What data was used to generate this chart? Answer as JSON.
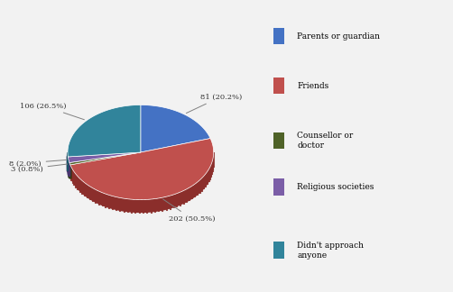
{
  "labels": [
    "Parents or guardian",
    "Friends",
    "Counsellor or\ndoctor",
    "Religious societies",
    "Didn't approach\nanyone"
  ],
  "values": [
    81,
    202,
    3,
    8,
    106
  ],
  "percentages": [
    "20.2%",
    "50.5%",
    "0.8%",
    "2.0%",
    "26.5%"
  ],
  "counts": [
    81,
    202,
    3,
    8,
    106
  ],
  "colors": [
    "#4472C4",
    "#C0504D",
    "#4F6228",
    "#7B5EA7",
    "#31849B"
  ],
  "shadow_colors": [
    "#2A5096",
    "#8B2E2B",
    "#354318",
    "#4A3570",
    "#1A5568"
  ],
  "legend_labels": [
    "Parents or guardian",
    "Friends",
    "Counsellor or\ndoctor",
    "Religious societies",
    "Didn't approach\nanyone"
  ],
  "background_color": "#f2f2f2",
  "startangle": 90,
  "label_color": "#4F4F4F"
}
